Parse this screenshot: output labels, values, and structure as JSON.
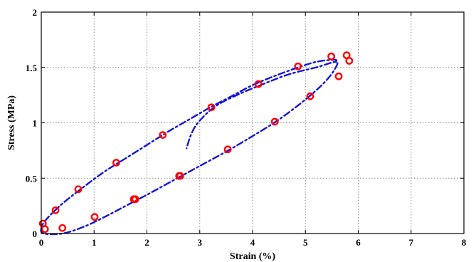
{
  "chart_data": {
    "type": "scatter",
    "xlabel": "Strain (%)",
    "ylabel": "Stress (MPa)",
    "xlim": [
      0,
      8
    ],
    "ylim": [
      0,
      2
    ],
    "xticks": [
      "0",
      "1",
      "2",
      "3",
      "4",
      "5",
      "6",
      "7",
      "8"
    ],
    "yticks": [
      "0",
      "0.5",
      "1",
      "1.5",
      "2"
    ],
    "grid": true,
    "series": [
      {
        "kind": "markers",
        "color": "#ff0000",
        "marker": "circle-open",
        "points": [
          [
            0.03,
            0.09
          ],
          [
            0.07,
            0.04
          ],
          [
            0.27,
            0.21
          ],
          [
            0.4,
            0.05
          ],
          [
            0.7,
            0.4
          ],
          [
            1.01,
            0.15
          ],
          [
            1.42,
            0.64
          ],
          [
            1.75,
            0.31
          ],
          [
            1.78,
            0.31
          ],
          [
            2.3,
            0.89
          ],
          [
            2.61,
            0.52
          ],
          [
            2.63,
            0.52
          ],
          [
            3.22,
            1.14
          ],
          [
            3.53,
            0.76
          ],
          [
            4.11,
            1.35
          ],
          [
            4.42,
            1.01
          ],
          [
            4.86,
            1.51
          ],
          [
            5.09,
            1.24
          ],
          [
            5.49,
            1.6
          ],
          [
            5.63,
            1.42
          ],
          [
            5.78,
            1.61
          ],
          [
            5.83,
            1.56
          ]
        ]
      },
      {
        "kind": "line",
        "color": "#1414d8",
        "style": "dash-dot",
        "points": [
          [
            5.58,
            1.55
          ],
          [
            5.55,
            1.57
          ],
          [
            5.2,
            1.55
          ],
          [
            4.8,
            1.49
          ],
          [
            4.4,
            1.42
          ],
          [
            4.0,
            1.34
          ],
          [
            3.6,
            1.24
          ],
          [
            3.2,
            1.14
          ],
          [
            2.8,
            1.03
          ],
          [
            2.4,
            0.92
          ],
          [
            2.0,
            0.8
          ],
          [
            1.6,
            0.68
          ],
          [
            1.2,
            0.56
          ],
          [
            0.8,
            0.42
          ],
          [
            0.4,
            0.27
          ],
          [
            0.1,
            0.13
          ],
          [
            0.0,
            0.05
          ],
          [
            0.05,
            0.0
          ],
          [
            0.4,
            0.0
          ],
          [
            0.8,
            0.06
          ],
          [
            1.2,
            0.15
          ],
          [
            1.6,
            0.25
          ],
          [
            2.0,
            0.35
          ],
          [
            2.5,
            0.48
          ],
          [
            3.0,
            0.61
          ],
          [
            3.5,
            0.74
          ],
          [
            4.0,
            0.88
          ],
          [
            4.5,
            1.03
          ],
          [
            5.0,
            1.21
          ],
          [
            5.35,
            1.36
          ],
          [
            5.55,
            1.48
          ],
          [
            5.58,
            1.55
          ],
          [
            5.2,
            1.5
          ],
          [
            4.7,
            1.44
          ],
          [
            4.2,
            1.35
          ],
          [
            3.7,
            1.25
          ],
          [
            3.3,
            1.15
          ],
          [
            3.0,
            1.02
          ],
          [
            2.85,
            0.91
          ],
          [
            2.75,
            0.77
          ]
        ]
      }
    ]
  }
}
